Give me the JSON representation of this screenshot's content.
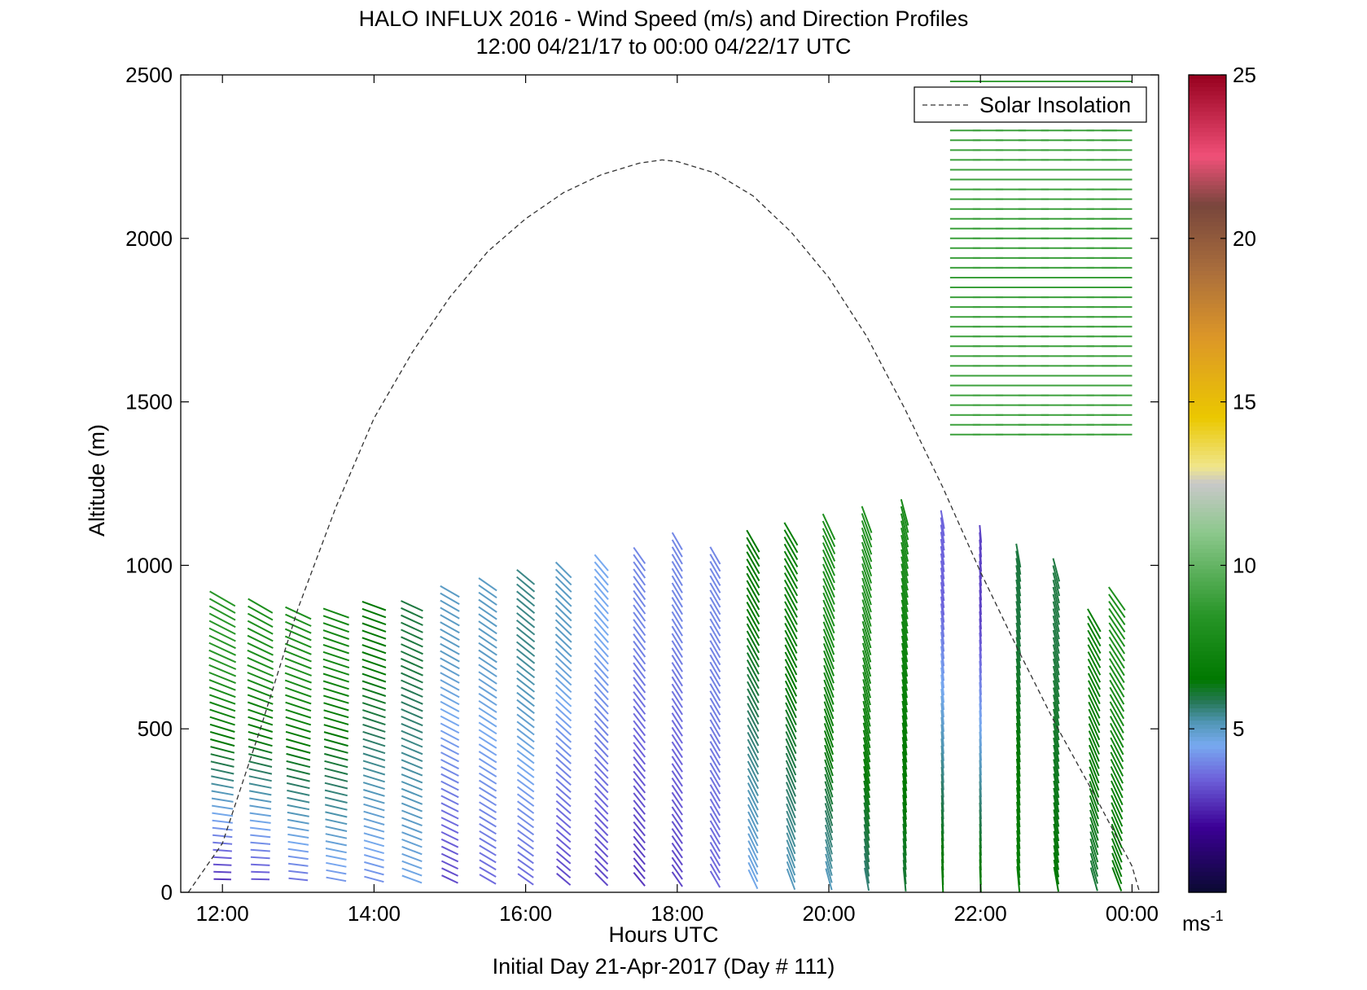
{
  "chart_data": {
    "type": "quiver",
    "title": "HALO INFLUX 2016 - Wind Speed (m/s) and Direction Profiles",
    "subtitle": "12:00 04/21/17 to 00:00 04/22/17  UTC",
    "xlabel": "Hours UTC",
    "footer": "Initial Day 21-Apr-2017 (Day # 111)",
    "ylabel": "Altitude (m)",
    "xlim": [
      11.45,
      24.35
    ],
    "ylim": [
      0,
      2500
    ],
    "x_tick_values": [
      12,
      14,
      16,
      18,
      20,
      22,
      24
    ],
    "x_tick_labels": [
      "12:00",
      "14:00",
      "16:00",
      "18:00",
      "20:00",
      "22:00",
      "00:00"
    ],
    "y_tick_values": [
      0,
      500,
      1000,
      1500,
      2000,
      2500
    ],
    "y_tick_labels": [
      "0",
      "500",
      "1000",
      "1500",
      "2000",
      "2500"
    ],
    "legend": {
      "entry": "Solar Insolation",
      "location": "top-right",
      "style": "dashed"
    },
    "colorbar": {
      "range": [
        0,
        25
      ],
      "tick_values": [
        5,
        10,
        15,
        20,
        25
      ],
      "tick_labels": [
        "5",
        "10",
        "15",
        "20",
        "25"
      ],
      "unit_label": "ms",
      "unit_exponent": "-1"
    },
    "solar_insolation": {
      "x": [
        11.55,
        12.0,
        12.5,
        13.0,
        13.5,
        14.0,
        14.5,
        15.0,
        15.5,
        16.0,
        16.5,
        17.0,
        17.5,
        17.8,
        18.0,
        18.5,
        19.0,
        19.5,
        20.0,
        20.5,
        21.0,
        21.5,
        22.0,
        22.5,
        23.0,
        23.5,
        24.0,
        24.1
      ],
      "y": [
        0,
        150,
        500,
        870,
        1180,
        1450,
        1650,
        1820,
        1960,
        2060,
        2140,
        2195,
        2230,
        2240,
        2235,
        2200,
        2130,
        2020,
        1880,
        1700,
        1480,
        1240,
        980,
        740,
        510,
        300,
        80,
        0
      ]
    },
    "wind_profiles": [
      {
        "time": 12.0,
        "top": 900,
        "low_dir": 270,
        "high_dir": 300,
        "low_speed": 2.5,
        "high_speed": 8.5
      },
      {
        "time": 12.5,
        "top": 880,
        "low_dir": 270,
        "high_dir": 300,
        "low_speed": 3.0,
        "high_speed": 8.0
      },
      {
        "time": 13.0,
        "top": 860,
        "low_dir": 275,
        "high_dir": 295,
        "low_speed": 3.5,
        "high_speed": 8.0
      },
      {
        "time": 13.5,
        "top": 870,
        "low_dir": 280,
        "high_dir": 290,
        "low_speed": 4.0,
        "high_speed": 7.5
      },
      {
        "time": 14.0,
        "top": 880,
        "low_dir": 285,
        "high_dir": 290,
        "low_speed": 4.0,
        "high_speed": 6.5
      },
      {
        "time": 14.5,
        "top": 890,
        "low_dir": 290,
        "high_dir": 295,
        "low_speed": 4.5,
        "high_speed": 6.0
      },
      {
        "time": 15.0,
        "top": 930,
        "low_dir": 295,
        "high_dir": 300,
        "low_speed": 3.0,
        "high_speed": 5.0
      },
      {
        "time": 15.5,
        "top": 950,
        "low_dir": 300,
        "high_dir": 305,
        "low_speed": 3.5,
        "high_speed": 5.0
      },
      {
        "time": 16.0,
        "top": 980,
        "low_dir": 305,
        "high_dir": 310,
        "low_speed": 3.5,
        "high_speed": 5.5
      },
      {
        "time": 16.5,
        "top": 1000,
        "low_dir": 310,
        "high_dir": 315,
        "low_speed": 3.0,
        "high_speed": 5.0
      },
      {
        "time": 17.0,
        "top": 1010,
        "low_dir": 315,
        "high_dir": 320,
        "low_speed": 3.0,
        "high_speed": 4.5
      },
      {
        "time": 17.5,
        "top": 1030,
        "low_dir": 320,
        "high_dir": 325,
        "low_speed": 2.8,
        "high_speed": 4.0
      },
      {
        "time": 18.0,
        "top": 1080,
        "low_dir": 325,
        "high_dir": 330,
        "low_speed": 3.0,
        "high_speed": 4.0
      },
      {
        "time": 18.5,
        "top": 1050,
        "low_dir": 330,
        "high_dir": 330,
        "low_speed": 3.5,
        "high_speed": 4.0
      },
      {
        "time": 19.0,
        "top": 1080,
        "low_dir": 335,
        "high_dir": 330,
        "low_speed": 4.5,
        "high_speed": 6.5
      },
      {
        "time": 19.5,
        "top": 1100,
        "low_dir": 340,
        "high_dir": 330,
        "low_speed": 5.0,
        "high_speed": 7.0
      },
      {
        "time": 20.0,
        "top": 1120,
        "low_dir": 345,
        "high_dir": 335,
        "low_speed": 5.0,
        "high_speed": 8.0
      },
      {
        "time": 20.5,
        "top": 1150,
        "low_dir": 350,
        "high_dir": 340,
        "low_speed": 5.5,
        "high_speed": 8.0
      },
      {
        "time": 21.0,
        "top": 1180,
        "low_dir": 355,
        "high_dir": 345,
        "low_speed": 6.0,
        "high_speed": 7.5
      },
      {
        "time": 21.5,
        "top": 1150,
        "low_dir": 358,
        "high_dir": 350,
        "low_speed": 7.0,
        "high_speed": 3.5
      },
      {
        "time": 22.0,
        "top": 1100,
        "low_dir": 358,
        "high_dir": 355,
        "low_speed": 7.0,
        "high_speed": 3.0
      },
      {
        "time": 22.5,
        "top": 1040,
        "low_dir": 355,
        "high_dir": 350,
        "low_speed": 7.0,
        "high_speed": 6.0
      },
      {
        "time": 23.0,
        "top": 1000,
        "low_dir": 350,
        "high_dir": 345,
        "low_speed": 6.5,
        "high_speed": 6.0
      },
      {
        "time": 23.5,
        "top": 850,
        "low_dir": 345,
        "high_dir": 330,
        "low_speed": 6.0,
        "high_speed": 7.0
      },
      {
        "time": 23.8,
        "top": 900,
        "low_dir": 340,
        "high_dir": 325,
        "low_speed": 6.5,
        "high_speed": 8.0
      }
    ],
    "upper_layer": {
      "times": [
        21.8,
        22.1,
        22.4,
        22.7,
        23.0,
        23.3,
        23.6,
        23.8
      ],
      "alt_range": [
        1400,
        2500
      ],
      "dir": 270,
      "speed": 9.0
    }
  }
}
